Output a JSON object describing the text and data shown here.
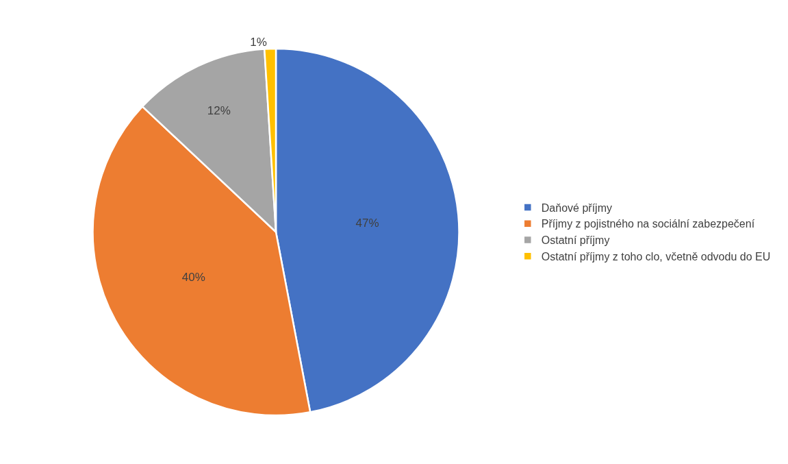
{
  "chart_data": {
    "type": "pie",
    "categories": [
      "Daňové příjmy",
      "Příjmy z pojistného na sociální zabezpečení",
      "Ostatní příjmy",
      "Ostatní příjmy z toho clo, včetně odvodu do EU"
    ],
    "values": [
      47,
      40,
      12,
      1
    ],
    "value_labels": [
      "47%",
      "40%",
      "12%",
      "1%"
    ],
    "colors": [
      "#4472c4",
      "#ed7d31",
      "#a5a5a5",
      "#ffc000"
    ],
    "legend": "right"
  }
}
